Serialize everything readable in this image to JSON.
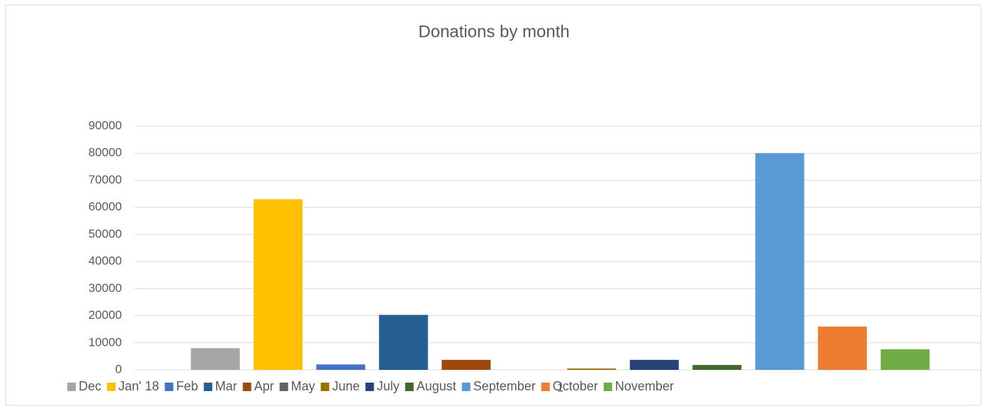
{
  "chart_data": {
    "type": "bar",
    "title": "Donations by month",
    "categories": [
      "1"
    ],
    "series": [
      {
        "name": "Dec",
        "color": "#a5a5a5",
        "values": [
          8000
        ]
      },
      {
        "name": "Jan' 18",
        "color": "#ffc000",
        "values": [
          63000
        ]
      },
      {
        "name": "Feb",
        "color": "#4472c4",
        "values": [
          2000
        ]
      },
      {
        "name": "Mar",
        "color": "#255e91",
        "values": [
          20300
        ]
      },
      {
        "name": "Apr",
        "color": "#9e480e",
        "values": [
          3700
        ]
      },
      {
        "name": "May",
        "color": "#636363",
        "values": [
          0
        ]
      },
      {
        "name": "June",
        "color": "#997300",
        "values": [
          500
        ]
      },
      {
        "name": "July",
        "color": "#264478",
        "values": [
          3700
        ]
      },
      {
        "name": "August",
        "color": "#43682b",
        "values": [
          1800
        ]
      },
      {
        "name": "September",
        "color": "#5b9bd5",
        "values": [
          80000
        ]
      },
      {
        "name": "October",
        "color": "#ed7d31",
        "values": [
          16000
        ]
      },
      {
        "name": "November",
        "color": "#70ad47",
        "values": [
          7600
        ]
      }
    ],
    "ylim": [
      0,
      90000
    ],
    "yticks": [
      0,
      10000,
      20000,
      30000,
      40000,
      50000,
      60000,
      70000,
      80000,
      90000
    ],
    "grid": true,
    "legend": "bottom"
  }
}
